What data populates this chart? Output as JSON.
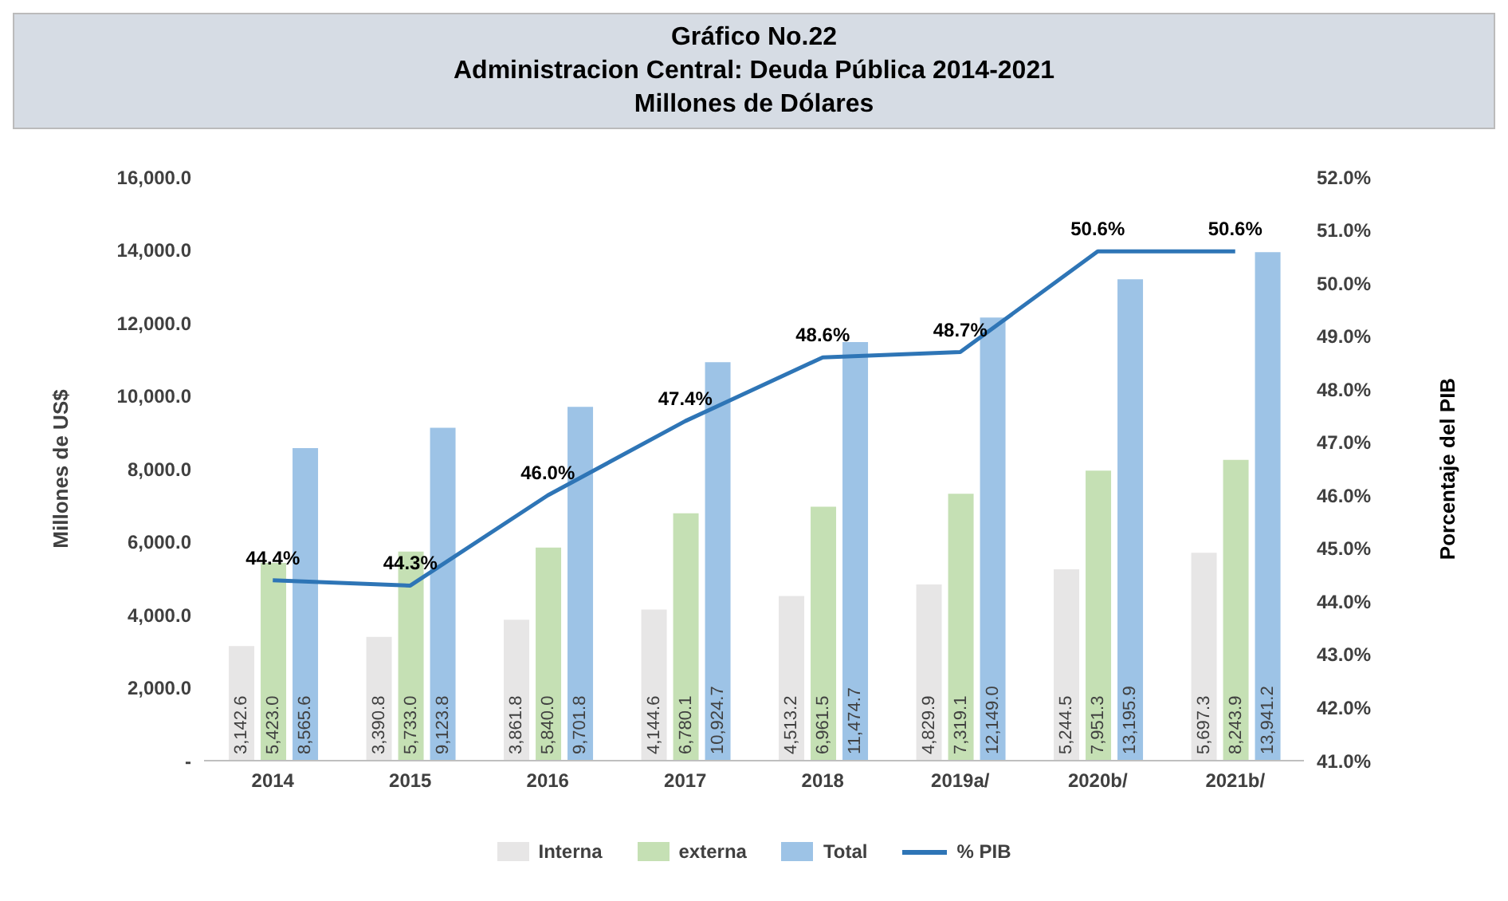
{
  "chart_data": {
    "type": "bar",
    "title": "Gráfico No.22\nAdministracion Central: Deuda Pública  2014-2021\nMillones de Dólares",
    "categories": [
      "2014",
      "2015",
      "2016",
      "2017",
      "2018",
      "2019a/",
      "2020b/",
      "2021b/"
    ],
    "series": [
      {
        "name": "Interna",
        "color": "#e7e6e6",
        "values": [
          3142.6,
          3390.8,
          3861.8,
          4144.6,
          4513.2,
          4829.9,
          5244.5,
          5697.3
        ],
        "value_labels": [
          "3,142.6",
          "3,390.8",
          "3,861.8",
          "4,144.6",
          "4,513.2",
          "4,829.9",
          "5,244.5",
          "5,697.3"
        ]
      },
      {
        "name": "externa",
        "color": "#c5e0b4",
        "values": [
          5423.0,
          5733.0,
          5840.0,
          6780.1,
          6961.5,
          7319.1,
          7951.3,
          8243.9
        ],
        "value_labels": [
          "5,423.0",
          "5,733.0",
          "5,840.0",
          "6,780.1",
          "6,961.5",
          "7,319.1",
          "7,951.3",
          "8,243.9"
        ]
      },
      {
        "name": "Total",
        "color": "#9dc3e6",
        "values": [
          8565.6,
          9123.8,
          9701.8,
          10924.7,
          11474.7,
          12149.0,
          13195.9,
          13941.2
        ],
        "value_labels": [
          "8,565.6",
          "9,123.8",
          "9,701.8",
          "10,924.7",
          "11,474.7",
          "12,149.0",
          "13,195.9",
          "13,941.2"
        ]
      },
      {
        "name": "% PIB",
        "type": "line",
        "axis": "y2",
        "color": "#2e75b6",
        "values": [
          44.4,
          44.3,
          46.0,
          47.4,
          48.6,
          48.7,
          50.6,
          50.6
        ],
        "value_labels": [
          "44.4%",
          "44.3%",
          "46.0%",
          "47.4%",
          "48.6%",
          "48.7%",
          "50.6%",
          "50.6%"
        ]
      }
    ],
    "ylabel": "Millones de US$",
    "y2label": "Porcentaje del PIB",
    "ylim": [
      0,
      16000
    ],
    "yticks": [
      {
        "value": 0,
        "label": "-"
      },
      {
        "value": 2000,
        "label": "2,000.0"
      },
      {
        "value": 4000,
        "label": "4,000.0"
      },
      {
        "value": 6000,
        "label": "6,000.0"
      },
      {
        "value": 8000,
        "label": "8,000.0"
      },
      {
        "value": 10000,
        "label": "10,000.0"
      },
      {
        "value": 12000,
        "label": "12,000.0"
      },
      {
        "value": 14000,
        "label": "14,000.0"
      },
      {
        "value": 16000,
        "label": "16,000.0"
      }
    ],
    "y2lim": [
      41,
      52
    ],
    "y2ticks": [
      {
        "value": 41,
        "label": "41.0%"
      },
      {
        "value": 42,
        "label": "42.0%"
      },
      {
        "value": 43,
        "label": "43.0%"
      },
      {
        "value": 44,
        "label": "44.0%"
      },
      {
        "value": 45,
        "label": "45.0%"
      },
      {
        "value": 46,
        "label": "46.0%"
      },
      {
        "value": 47,
        "label": "47.0%"
      },
      {
        "value": 48,
        "label": "48.0%"
      },
      {
        "value": 49,
        "label": "49.0%"
      },
      {
        "value": 50,
        "label": "50.0%"
      },
      {
        "value": 51,
        "label": "51.0%"
      },
      {
        "value": 52,
        "label": "52.0%"
      }
    ],
    "grid": false,
    "legend": "bottom",
    "marker": "none",
    "line_style": "solid"
  }
}
